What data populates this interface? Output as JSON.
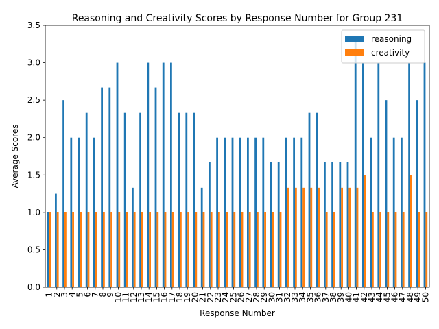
{
  "chart_data": {
    "type": "bar",
    "title": "Reasoning and Creativity Scores by Response Number for Group 231",
    "xlabel": "Response Number",
    "ylabel": "Average Scores",
    "ylim": [
      0,
      3.5
    ],
    "yticks": [
      "0.0",
      "0.5",
      "1.0",
      "1.5",
      "2.0",
      "2.5",
      "3.0",
      "3.5"
    ],
    "grid": false,
    "legend_position": "top-right",
    "categories": [
      "1",
      "2",
      "3",
      "4",
      "5",
      "6",
      "7",
      "8",
      "9",
      "10",
      "11",
      "12",
      "13",
      "14",
      "15",
      "16",
      "17",
      "18",
      "19",
      "20",
      "21",
      "22",
      "23",
      "24",
      "25",
      "26",
      "27",
      "28",
      "29",
      "30",
      "31",
      "32",
      "33",
      "34",
      "35",
      "36",
      "37",
      "38",
      "39",
      "40",
      "41",
      "42",
      "43",
      "44",
      "45",
      "46",
      "47",
      "48",
      "49",
      "50"
    ],
    "series": [
      {
        "name": "reasoning",
        "color": "#1f77b4",
        "values": [
          1.0,
          1.25,
          2.5,
          2.0,
          2.0,
          2.33,
          2.0,
          2.67,
          2.67,
          3.0,
          2.33,
          1.33,
          2.33,
          3.0,
          2.67,
          3.0,
          3.0,
          2.33,
          2.33,
          2.33,
          1.33,
          1.67,
          2.0,
          2.0,
          2.0,
          2.0,
          2.0,
          2.0,
          2.0,
          1.67,
          1.67,
          2.0,
          2.0,
          2.0,
          2.33,
          2.33,
          1.67,
          1.67,
          1.67,
          1.67,
          3.33,
          3.0,
          2.0,
          3.0,
          2.5,
          2.0,
          2.0,
          3.0,
          2.5,
          3.0
        ]
      },
      {
        "name": "creativity",
        "color": "#ff7f0e",
        "values": [
          1.0,
          1.0,
          1.0,
          1.0,
          1.0,
          1.0,
          1.0,
          1.0,
          1.0,
          1.0,
          1.0,
          1.0,
          1.0,
          1.0,
          1.0,
          1.0,
          1.0,
          1.0,
          1.0,
          1.0,
          1.0,
          1.0,
          1.0,
          1.0,
          1.0,
          1.0,
          1.0,
          1.0,
          1.0,
          1.0,
          1.0,
          1.33,
          1.33,
          1.33,
          1.33,
          1.33,
          1.0,
          1.0,
          1.33,
          1.33,
          1.33,
          1.5,
          1.0,
          1.0,
          1.0,
          1.0,
          1.0,
          1.5,
          1.0,
          1.0
        ]
      }
    ]
  }
}
